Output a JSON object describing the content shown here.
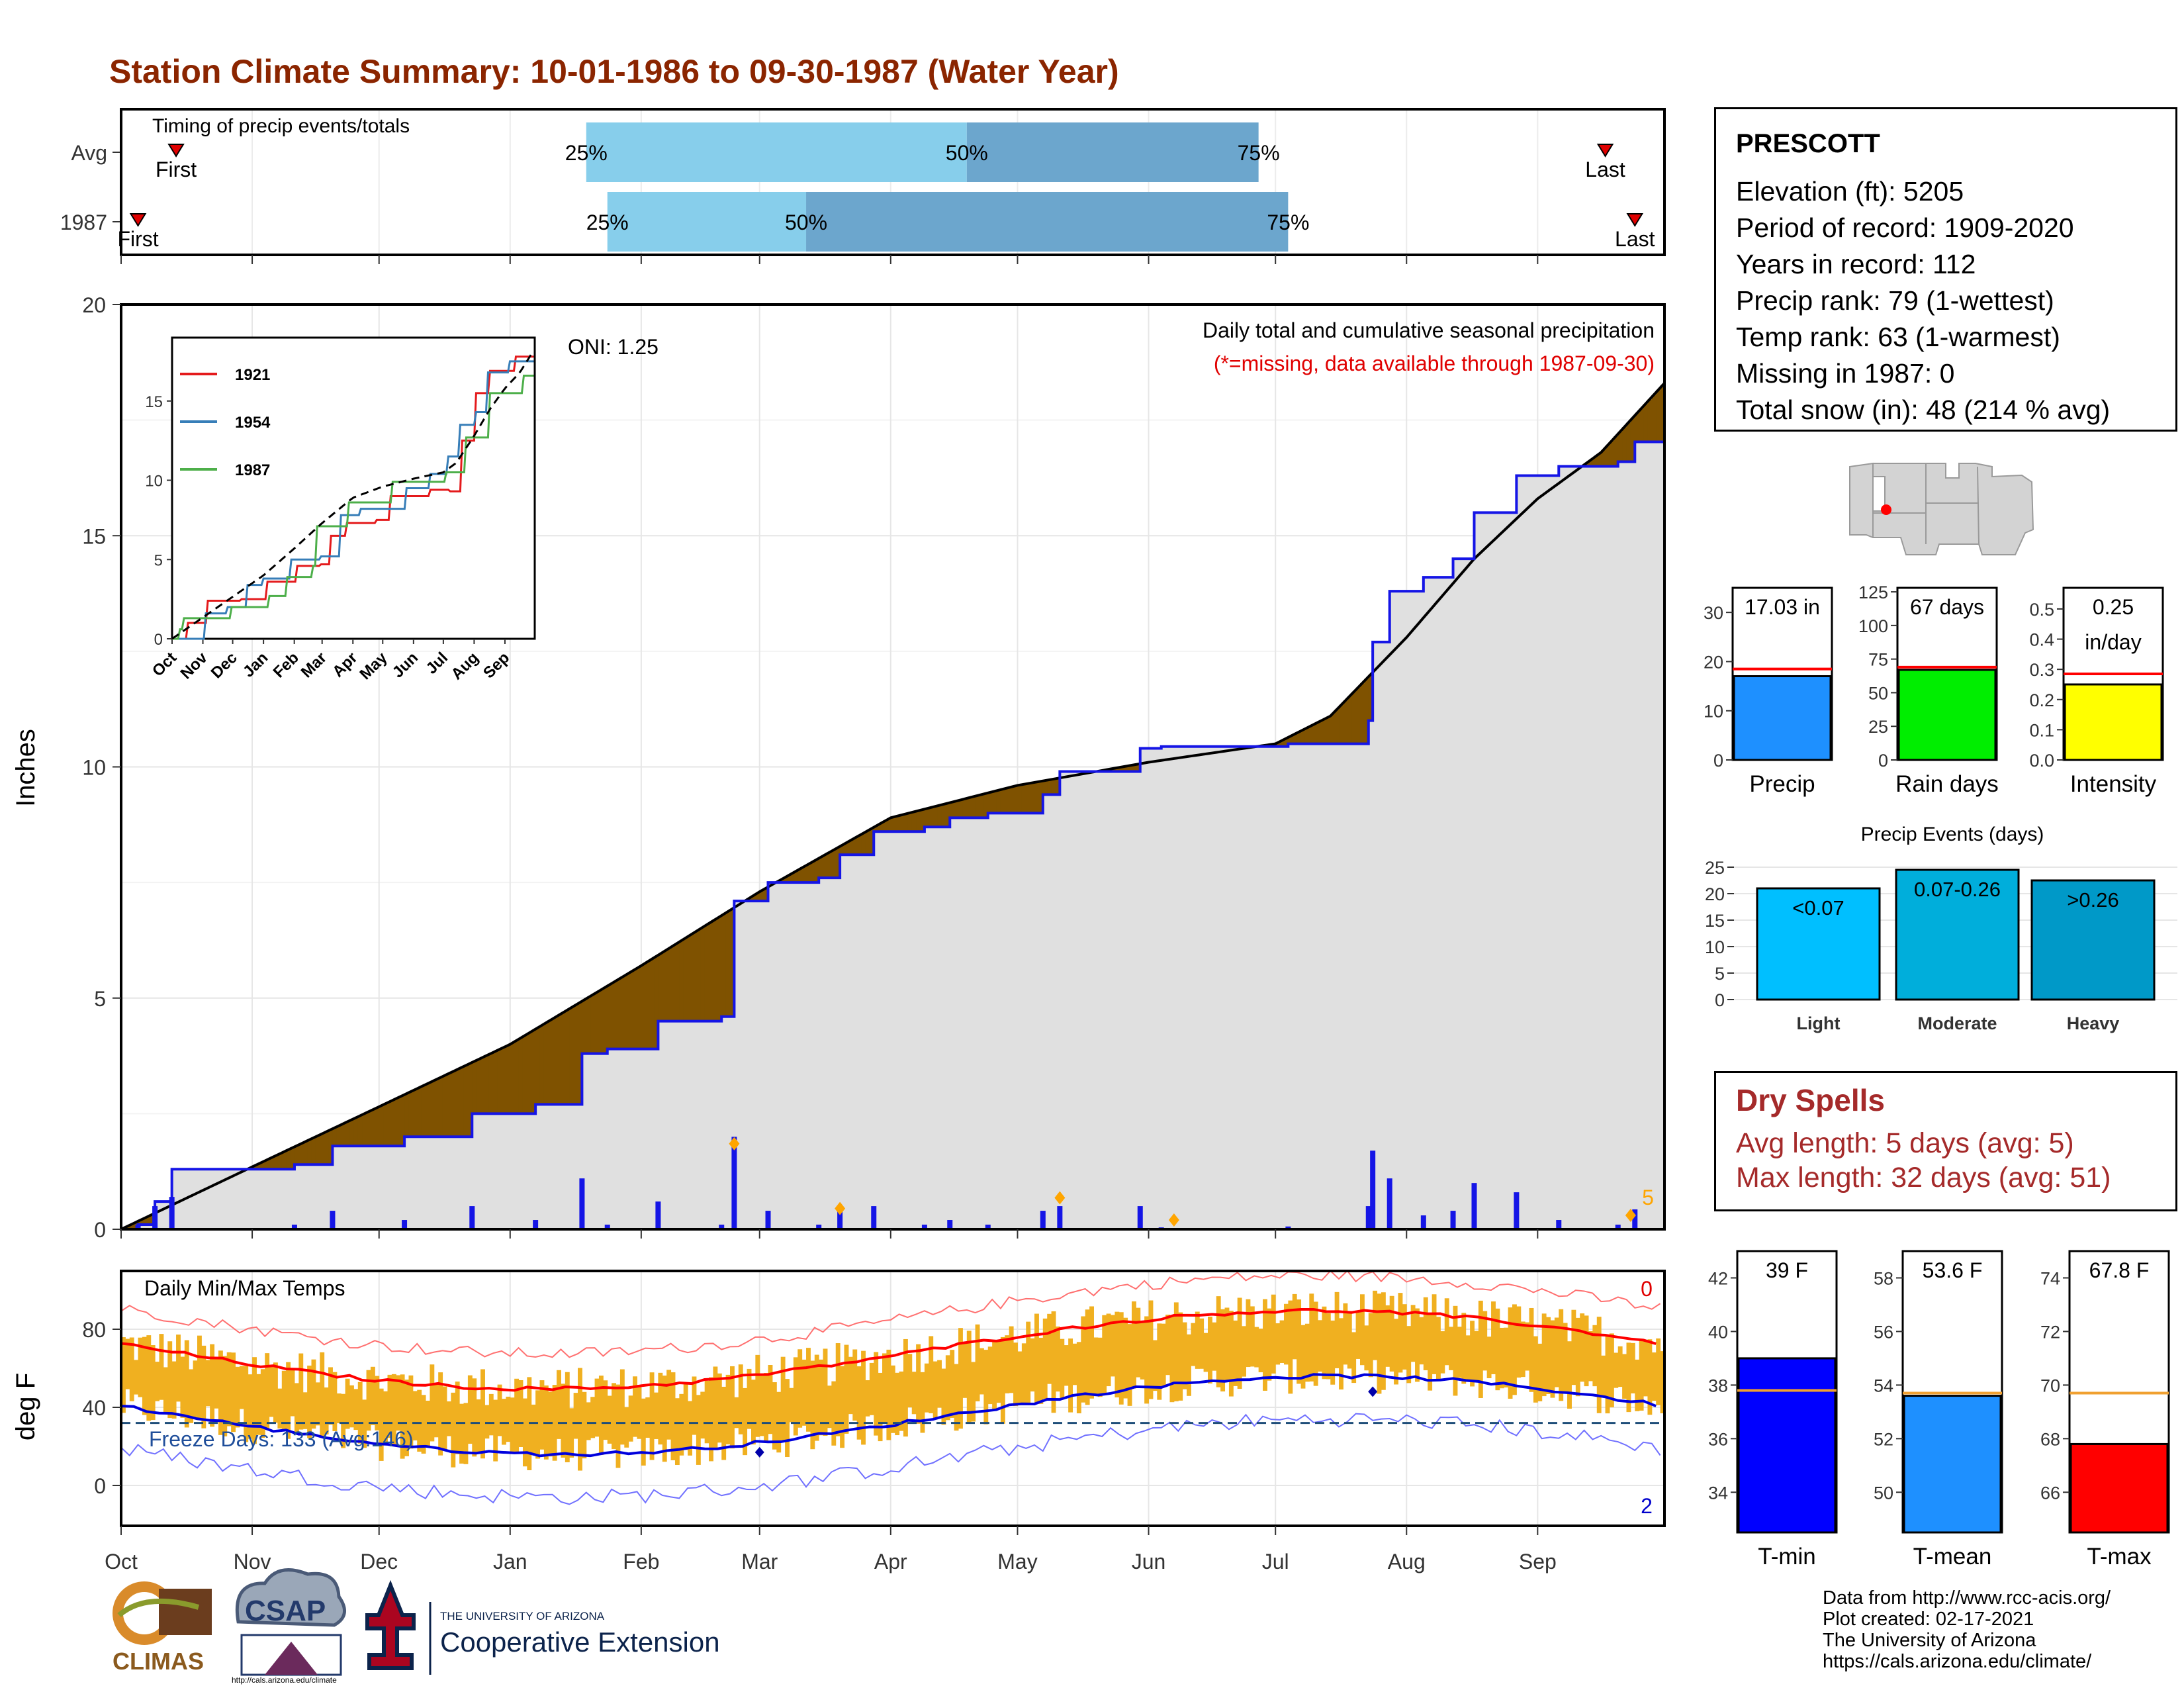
{
  "title": "Station Climate Summary: 10-01-1986 to 09-30-1987 (Water Year)",
  "colors": {
    "title": "#8b2500",
    "brown": "#7f5200",
    "green": "#0a7a0a",
    "blue_step": "#1515e6",
    "gray_fill": "#e0e0e0",
    "dry_text": "#a52a2a",
    "temp_bar": "#f0b020"
  },
  "timing": {
    "label": "Timing of precip events/totals",
    "rows": [
      {
        "label": "Avg",
        "first": "First",
        "last": "Last",
        "p25": "25%",
        "p50": "50%",
        "p75": "75%",
        "first_day": 13,
        "last_day": 351,
        "d25": 110,
        "d50": 200,
        "d75": 269
      },
      {
        "label": "1987",
        "first": "First",
        "last": "Last",
        "p25": "25%",
        "p50": "50%",
        "p75": "75%",
        "first_day": 4,
        "last_day": 358,
        "d25": 115,
        "d50": 162,
        "d75": 276
      }
    ]
  },
  "precip": {
    "ylabel": "Inches",
    "annotation_title": "Daily total and cumulative seasonal precipitation",
    "annotation_note": "(*=missing, data available through 1987-09-30)",
    "oni": "ONI: 1.25",
    "corner_count": "5",
    "yticks": [
      "0",
      "5",
      "10",
      "15",
      "20"
    ],
    "ymax": 20,
    "inset": {
      "yticks": [
        "0",
        "5",
        "10",
        "15"
      ],
      "xticks": [
        "Oct",
        "Nov",
        "Dec",
        "Jan",
        "Feb",
        "Mar",
        "Apr",
        "May",
        "Jun",
        "Jul",
        "Aug",
        "Sep"
      ],
      "legend": [
        "1921",
        "1954",
        "1987"
      ],
      "legend_colors": [
        "#e41a1c",
        "#377eb8",
        "#4daf4a"
      ]
    }
  },
  "temps": {
    "ylabel": "deg F",
    "label": "Daily Min/Max Temps",
    "freeze": "Freeze Days: 133 (Avg:146)",
    "count_top": "0",
    "count_bottom": "2",
    "yticks": [
      "0",
      "40",
      "80"
    ]
  },
  "months": [
    "Oct",
    "Nov",
    "Dec",
    "Jan",
    "Feb",
    "Mar",
    "Apr",
    "May",
    "Jun",
    "Jul",
    "Aug",
    "Sep"
  ],
  "station": {
    "name": "PRESCOTT",
    "elevation": "Elevation (ft): 5205",
    "period": "Period of record: 1909-2020",
    "years": "Years in record: 112",
    "precip_rank": "Precip rank: 79 (1-wettest)",
    "temp_rank": "Temp rank: 63 (1-warmest)",
    "missing": "Missing in 1987: 0",
    "snow": "Total snow (in): 48 (214 % avg)"
  },
  "mini_bars": [
    {
      "label": "Precip",
      "value_text": "17.03 in",
      "value": 17.03,
      "avg": 18.5,
      "max": 35,
      "ticks": [
        "0",
        "10",
        "20",
        "30"
      ],
      "color": "#1e90ff"
    },
    {
      "label": "Rain days",
      "value_text": "67 days",
      "value": 67,
      "avg": 69,
      "max": 128,
      "ticks": [
        "0",
        "25",
        "50",
        "75",
        "100",
        "125"
      ],
      "color": "#00ee00"
    },
    {
      "label": "Intensity",
      "value_text": "0.25 in/day",
      "value_line1": "0.25",
      "value_line2": "in/day",
      "value": 0.25,
      "avg": 0.285,
      "max": 0.57,
      "ticks": [
        "0.0",
        "0.1",
        "0.2",
        "0.3",
        "0.4",
        "0.5"
      ],
      "color": "#ffff00"
    }
  ],
  "events": {
    "title": "Precip Events (days)",
    "yticks": [
      "0",
      "5",
      "10",
      "15",
      "20",
      "25"
    ],
    "bars": [
      {
        "label": "Light",
        "value_text": "<0.07",
        "value": 21,
        "color": "#00bfff"
      },
      {
        "label": "Moderate",
        "value_text": "0.07-0.26",
        "value": 24.5,
        "color": "#00aedb"
      },
      {
        "label": "Heavy",
        "value_text": ">0.26",
        "value": 22.5,
        "color": "#0099c8"
      }
    ]
  },
  "dry_spells": {
    "title": "Dry Spells",
    "avg": "Avg length: 5 days (avg: 5)",
    "max": "Max length: 32 days (avg: 51)"
  },
  "temp_bars": [
    {
      "label": "T-min",
      "value_text": "39 F",
      "value": 39.0,
      "avg": 37.8,
      "lo": 32.5,
      "hi": 43,
      "ticks": [
        "34",
        "36",
        "38",
        "40",
        "42"
      ],
      "color": "#0000ff"
    },
    {
      "label": "T-mean",
      "value_text": "53.6 F",
      "value": 53.6,
      "avg": 53.7,
      "lo": 48.5,
      "hi": 59,
      "ticks": [
        "50",
        "52",
        "54",
        "56",
        "58"
      ],
      "color": "#1e90ff"
    },
    {
      "label": "T-max",
      "value_text": "67.8 F",
      "value": 67.8,
      "avg": 69.7,
      "lo": 64.5,
      "hi": 75,
      "ticks": [
        "66",
        "68",
        "70",
        "72",
        "74"
      ],
      "color": "#ff0000"
    }
  ],
  "logos": {
    "climas": "CLIMAS",
    "csap": "CSAP",
    "csap_url": "http://cals.arizona.edu/climate",
    "ua_small": "THE UNIVERSITY OF ARIZONA",
    "ua_big": "Cooperative Extension"
  },
  "credits": [
    "Data from http://www.rcc-acis.org/",
    "Plot created: 02-17-2021",
    "The University of Arizona",
    "https://cals.arizona.edu/climate/"
  ]
}
